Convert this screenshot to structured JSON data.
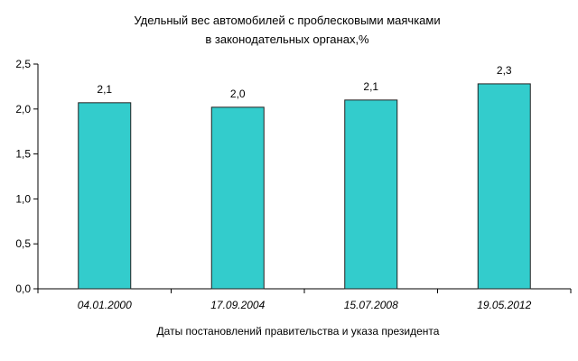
{
  "chart_data": {
    "type": "bar",
    "title_lines": [
      "Удельный вес автомобилей с проблесковыми маячками",
      "в законодательных органах,%"
    ],
    "xlabel": "Даты постановлений правительства и указа президента",
    "ylabel": "",
    "categories": [
      "04.01.2000",
      "17.09.2004",
      "15.07.2008",
      "19.05.2012"
    ],
    "values": [
      2.07,
      2.02,
      2.1,
      2.28
    ],
    "value_labels": [
      "2,1",
      "2,0",
      "2,1",
      "2,3"
    ],
    "ylim": [
      0,
      2.5
    ],
    "y_ticks": [
      0,
      0.5,
      1.0,
      1.5,
      2.0,
      2.5
    ],
    "y_tick_labels": [
      "0,0",
      "0,5",
      "1,0",
      "1,5",
      "2,0",
      "2,5"
    ],
    "grid": false,
    "legend": "none",
    "bar_color": "#33CCCC",
    "bar_edge_color": "#222222"
  }
}
